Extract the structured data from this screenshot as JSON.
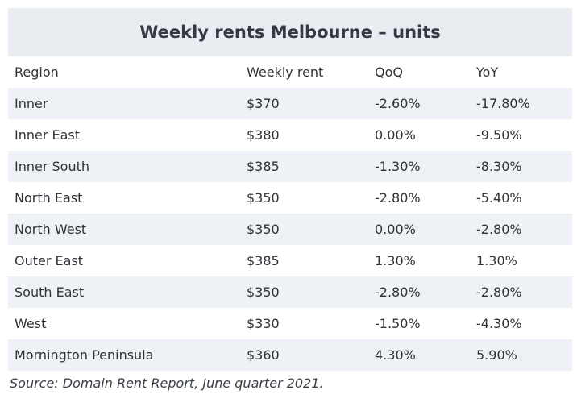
{
  "table": {
    "title": "Weekly rents Melbourne – units",
    "header": [
      "Region",
      "Weekly rent",
      "QoQ",
      "YoY"
    ],
    "rows": [
      [
        "Inner",
        "$370",
        "-2.60%",
        "-17.80%"
      ],
      [
        "Inner East",
        "$380",
        "0.00%",
        "-9.50%"
      ],
      [
        "Inner South",
        "$385",
        "-1.30%",
        "-8.30%"
      ],
      [
        "North East",
        "$350",
        "-2.80%",
        "-5.40%"
      ],
      [
        "North West",
        "$350",
        "0.00%",
        "-2.80%"
      ],
      [
        "Outer East",
        "$385",
        "1.30%",
        "1.30%"
      ],
      [
        "South East",
        "$350",
        "-2.80%",
        "-2.80%"
      ],
      [
        "West",
        "$330",
        "-1.50%",
        "-4.30%"
      ],
      [
        "Mornington Peninsula",
        "$360",
        "4.30%",
        "5.90%"
      ]
    ],
    "source": "Source: Domain Rent Report, June quarter 2021."
  }
}
